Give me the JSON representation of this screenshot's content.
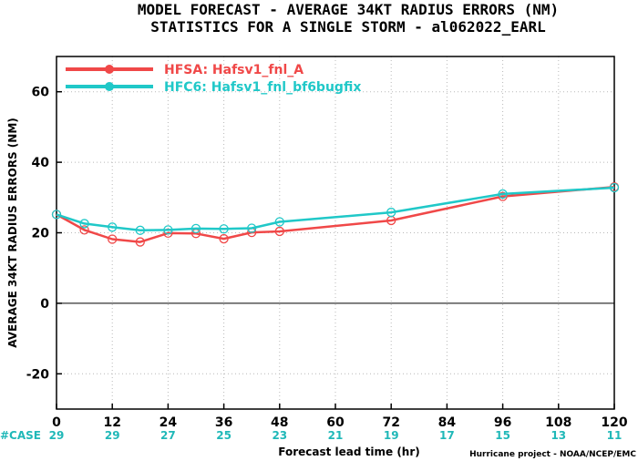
{
  "chart_data": {
    "type": "line",
    "title": "MODEL FORECAST - AVERAGE 34KT RADIUS ERRORS (NM)",
    "subtitle": "STATISTICS FOR A SINGLE STORM - al062022_EARL",
    "xlabel": "Forecast lead time (hr)",
    "ylabel": "AVERAGE 34KT RADIUS ERRORS (NM)",
    "xlim": [
      0,
      120
    ],
    "ylim": [
      -30,
      70
    ],
    "xticks": [
      0,
      12,
      24,
      36,
      48,
      60,
      72,
      84,
      96,
      108,
      120
    ],
    "yticks": [
      -20,
      0,
      20,
      40,
      60
    ],
    "grid": true,
    "legend_position": "top-left",
    "series": [
      {
        "name": "HFSA: Hafsv1_fnl_A",
        "color": "#f04848",
        "x": [
          0,
          6,
          12,
          18,
          24,
          30,
          36,
          42,
          48,
          72,
          96,
          120
        ],
        "y": [
          25.2,
          20.8,
          18.2,
          17.4,
          19.9,
          19.8,
          18.3,
          20.1,
          20.4,
          23.5,
          30.3,
          33.0
        ]
      },
      {
        "name": "HFC6: Hafsv1_fnl_bf6bugfix",
        "color": "#20c8c8",
        "x": [
          0,
          6,
          12,
          18,
          24,
          30,
          36,
          42,
          48,
          72,
          96,
          120
        ],
        "y": [
          25.2,
          22.6,
          21.6,
          20.7,
          20.8,
          21.2,
          21.1,
          21.3,
          23.1,
          25.8,
          31.0,
          32.8
        ]
      }
    ],
    "case_label": "#CASE",
    "case_color": "#20b8b8",
    "cases": [
      {
        "hour": 0,
        "count": "29"
      },
      {
        "hour": 12,
        "count": "29"
      },
      {
        "hour": 24,
        "count": "27"
      },
      {
        "hour": 36,
        "count": "25"
      },
      {
        "hour": 48,
        "count": "23"
      },
      {
        "hour": 60,
        "count": "21"
      },
      {
        "hour": 72,
        "count": "19"
      },
      {
        "hour": 84,
        "count": "17"
      },
      {
        "hour": 96,
        "count": "15"
      },
      {
        "hour": 108,
        "count": "13"
      },
      {
        "hour": 120,
        "count": "11"
      }
    ],
    "credit": "Hurricane project - NOAA/NCEP/EMC"
  }
}
